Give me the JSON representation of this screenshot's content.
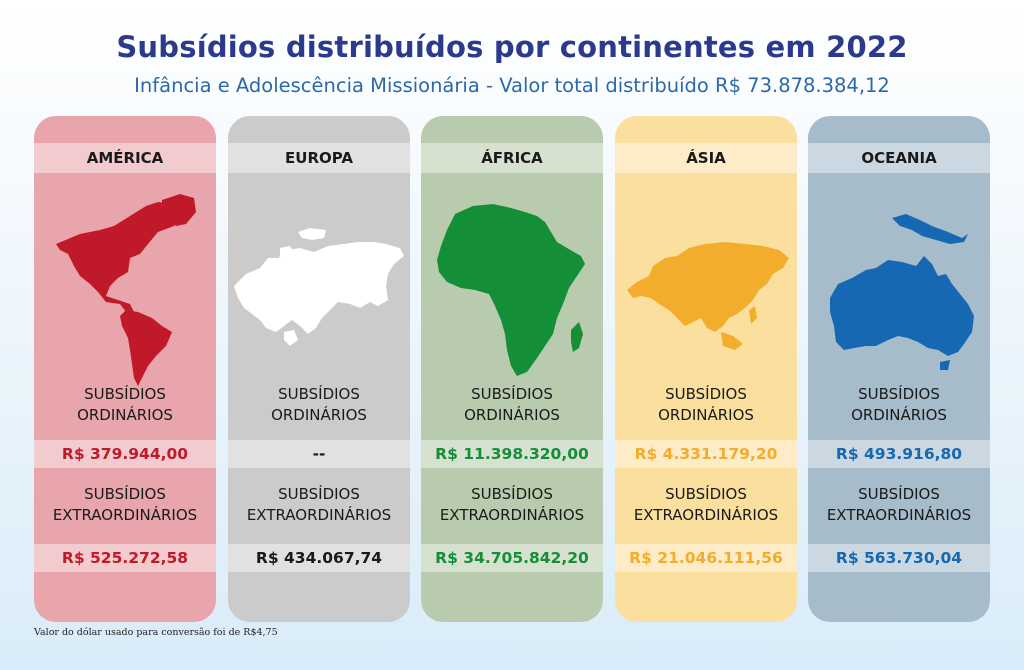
{
  "title": "Subsídios distribuídos por continentes em 2022",
  "subtitle": "Infância e Adolescência Missionária - Valor total distribuído R$ 73.878.384,12",
  "label_ordinary_line1": "SUBSÍDIOS",
  "label_ordinary_line2": "ORDINÁRIOS",
  "label_extra_line1": "SUBSÍDIOS",
  "label_extra_line2": "EXTRAORDINÁRIOS",
  "continents": [
    {
      "name": "AMÉRICA",
      "ordinary": "R$ 379.944,00",
      "extraordinary": "R$ 525.272,58",
      "card_color": "#e8a5ab",
      "map_color": "#c0192a",
      "value_color": "#c0192a",
      "extra_value_color": "#c0192a",
      "icon": "americas-map-icon"
    },
    {
      "name": "EUROPA",
      "ordinary": "--",
      "extraordinary": "R$ 434.067,74",
      "card_color": "#cbcbcb",
      "map_color": "#ffffff",
      "value_color": "#1a1a1a",
      "extra_value_color": "#1a1a1a",
      "icon": "europe-map-icon"
    },
    {
      "name": "ÁFRICA",
      "ordinary": "R$ 11.398.320,00",
      "extraordinary": "R$ 34.705.842,20",
      "card_color": "#b9cbae",
      "map_color": "#148f38",
      "value_color": "#148f38",
      "extra_value_color": "#148f38",
      "icon": "africa-map-icon"
    },
    {
      "name": "ÁSIA",
      "ordinary": "R$ 4.331.179,20",
      "extraordinary": "R$ 21.046.111,56",
      "card_color": "#fbdf9f",
      "map_color": "#f2ad2c",
      "value_color": "#f2ad2c",
      "extra_value_color": "#f2ad2c",
      "icon": "asia-map-icon"
    },
    {
      "name": "OCEANIA",
      "ordinary": "R$ 493.916,80",
      "extraordinary": "R$ 563.730,04",
      "card_color": "#a7bccb",
      "map_color": "#1668b3",
      "value_color": "#1668b3",
      "extra_value_color": "#1668b3",
      "icon": "oceania-map-icon"
    }
  ],
  "footnote": "Valor do dólar usado para conversão foi de R$4,75"
}
